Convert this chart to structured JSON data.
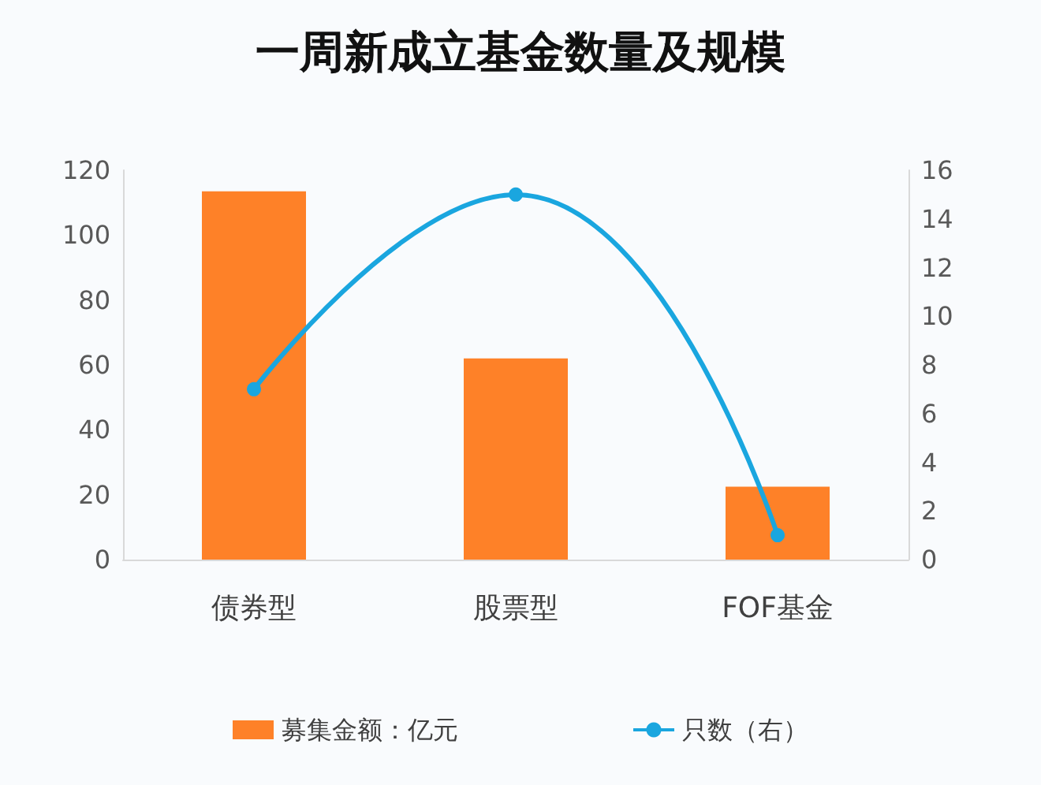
{
  "chart_data": {
    "type": "bar",
    "title": "一周新成立基金数量及规模",
    "categories": [
      "债券型",
      "股票型",
      "FOF基金"
    ],
    "series": [
      {
        "name": "募集金额：亿元",
        "color": "#fe8128",
        "values": [
          113.5,
          62,
          22.5
        ]
      },
      {
        "name": "只数（右）",
        "type": "line",
        "axis": "y2",
        "color": "#1aa6df",
        "values": [
          7,
          15,
          1
        ]
      }
    ],
    "ylim": [
      0,
      120
    ],
    "yticks": [
      0,
      20,
      40,
      60,
      80,
      100,
      120
    ],
    "y2lim": [
      0,
      16
    ],
    "y2ticks": [
      0,
      2,
      4,
      6,
      8,
      10,
      12,
      14,
      16
    ],
    "grid": false,
    "legend": "bottom",
    "marker": "circle"
  }
}
